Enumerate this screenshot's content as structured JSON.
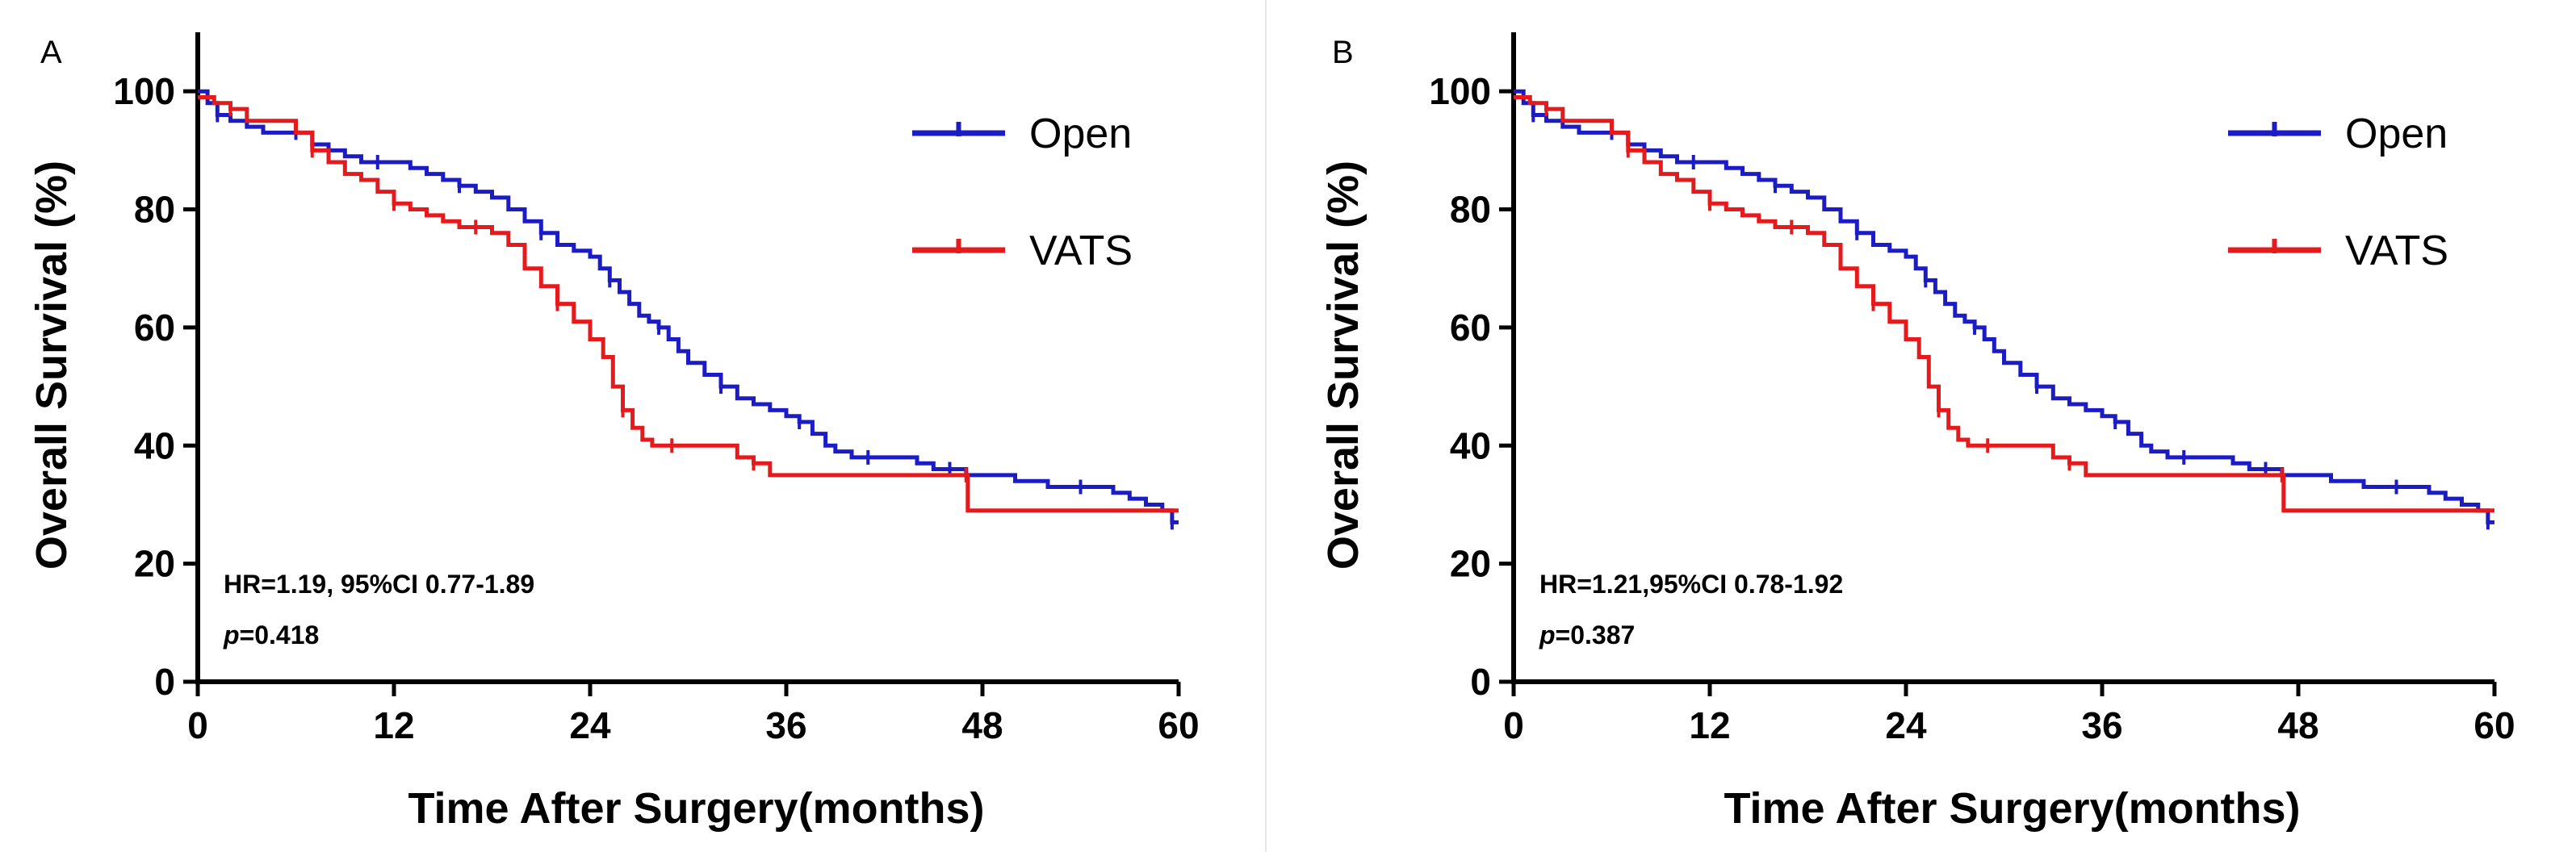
{
  "chart_data": [
    {
      "type": "line",
      "panel_label": "A",
      "xlabel": "Time After Surgery(months)",
      "ylabel": "Overall Survival (%)",
      "xlim": [
        0,
        60
      ],
      "ylim": [
        0,
        110
      ],
      "xticks": [
        0,
        12,
        24,
        36,
        48,
        60
      ],
      "yticks": [
        0,
        20,
        40,
        60,
        80,
        100
      ],
      "grid": false,
      "legend_position": "top-right",
      "annotation": {
        "hr_text": "HR=1.19, 95%CI 0.77-1.89",
        "p_symbol": "p",
        "p_value": "=0.418"
      },
      "series": [
        {
          "name": "Open",
          "color": "#1c1cc4",
          "x": [
            0,
            0.6,
            1.2,
            2,
            3,
            4,
            5,
            6,
            7,
            8,
            9,
            10,
            11,
            12,
            13,
            14,
            15,
            16,
            17,
            18,
            19,
            20,
            21,
            22,
            23,
            24,
            24.6,
            25.2,
            25.8,
            26.4,
            27,
            27.6,
            28.2,
            28.8,
            29.4,
            30,
            31,
            32,
            33,
            34,
            35,
            36,
            36.8,
            37.6,
            38.4,
            39,
            40,
            41,
            42,
            43,
            44,
            45,
            46,
            47,
            48,
            50,
            52,
            54,
            56,
            57,
            58,
            59,
            59.6,
            60
          ],
          "y": [
            100,
            98,
            96,
            95,
            94,
            93,
            93,
            93,
            91,
            90,
            89,
            88,
            88,
            88,
            87,
            86,
            85,
            84,
            83,
            82,
            80,
            78,
            76,
            74,
            73,
            72,
            70,
            68,
            66,
            64,
            62,
            61,
            60,
            58,
            56,
            54,
            52,
            50,
            48,
            47,
            46,
            45,
            44,
            42,
            40,
            39,
            38,
            38,
            38,
            38,
            37,
            36,
            36,
            35,
            35,
            34,
            33,
            33,
            32,
            31,
            30,
            29,
            27,
            27
          ]
        },
        {
          "name": "VATS",
          "color": "#e41a1c",
          "x": [
            0,
            1,
            2,
            3,
            4,
            5,
            6,
            7,
            8,
            9,
            10,
            11,
            12,
            13,
            14,
            15,
            16,
            17,
            18,
            19,
            20,
            21,
            22,
            23,
            24,
            24.8,
            25.4,
            26,
            26.6,
            27.2,
            27.8,
            28.4,
            29,
            30,
            31,
            32,
            33,
            34,
            35,
            36,
            40,
            44,
            47,
            47.1,
            50,
            54,
            58,
            60
          ],
          "y": [
            99,
            98,
            97,
            95,
            95,
            95,
            93,
            90,
            88,
            86,
            85,
            83,
            81,
            80,
            79,
            78,
            77,
            77,
            76,
            74,
            70,
            67,
            64,
            61,
            58,
            55,
            50,
            46,
            43,
            41,
            40,
            40,
            40,
            40,
            40,
            40,
            38,
            37,
            35,
            35,
            35,
            35,
            35,
            29,
            29,
            29,
            29,
            29
          ]
        }
      ]
    },
    {
      "type": "line",
      "panel_label": "B",
      "xlabel": "Time After Surgery(months)",
      "ylabel": "Overall Survival (%)",
      "xlim": [
        0,
        60
      ],
      "ylim": [
        0,
        110
      ],
      "xticks": [
        0,
        12,
        24,
        36,
        48,
        60
      ],
      "yticks": [
        0,
        20,
        40,
        60,
        80,
        100
      ],
      "grid": false,
      "legend_position": "top-right",
      "annotation": {
        "hr_text": "HR=1.21,95%CI 0.78-1.92",
        "p_symbol": "p",
        "p_value": "=0.387"
      },
      "series": [
        {
          "name": "Open",
          "color": "#1c1cc4",
          "x": [
            0,
            0.6,
            1.2,
            2,
            3,
            4,
            5,
            6,
            7,
            8,
            9,
            10,
            11,
            12,
            13,
            14,
            15,
            16,
            17,
            18,
            19,
            20,
            21,
            22,
            23,
            24,
            24.6,
            25.2,
            25.8,
            26.4,
            27,
            27.6,
            28.2,
            28.8,
            29.4,
            30,
            31,
            32,
            33,
            34,
            35,
            36,
            36.8,
            37.6,
            38.4,
            39,
            40,
            41,
            42,
            43,
            44,
            45,
            46,
            47,
            48,
            50,
            52,
            54,
            56,
            57,
            58,
            59,
            59.6,
            60
          ],
          "y": [
            100,
            98,
            96,
            95,
            94,
            93,
            93,
            93,
            91,
            90,
            89,
            88,
            88,
            88,
            87,
            86,
            85,
            84,
            83,
            82,
            80,
            78,
            76,
            74,
            73,
            72,
            70,
            68,
            66,
            64,
            62,
            61,
            60,
            58,
            56,
            54,
            52,
            50,
            48,
            47,
            46,
            45,
            44,
            42,
            40,
            39,
            38,
            38,
            38,
            38,
            37,
            36,
            36,
            35,
            35,
            34,
            33,
            33,
            32,
            31,
            30,
            29,
            27,
            27
          ]
        },
        {
          "name": "VATS",
          "color": "#e41a1c",
          "x": [
            0,
            1,
            2,
            3,
            4,
            5,
            6,
            7,
            8,
            9,
            10,
            11,
            12,
            13,
            14,
            15,
            16,
            17,
            18,
            19,
            20,
            21,
            22,
            23,
            24,
            24.8,
            25.4,
            26,
            26.6,
            27.2,
            27.8,
            28.4,
            29,
            30,
            31,
            32,
            33,
            34,
            35,
            36,
            40,
            44,
            47,
            47.1,
            50,
            54,
            58,
            60
          ],
          "y": [
            99,
            98,
            97,
            95,
            95,
            95,
            93,
            90,
            88,
            86,
            85,
            83,
            81,
            80,
            79,
            78,
            77,
            77,
            76,
            74,
            70,
            67,
            64,
            61,
            58,
            55,
            50,
            46,
            43,
            41,
            40,
            40,
            40,
            40,
            40,
            40,
            38,
            37,
            35,
            35,
            35,
            35,
            35,
            29,
            29,
            29,
            29,
            29
          ]
        }
      ]
    }
  ]
}
